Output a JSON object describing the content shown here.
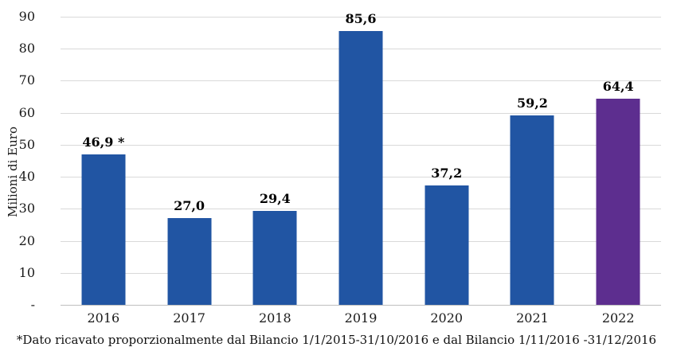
{
  "chart_data": {
    "type": "bar",
    "categories": [
      "2016",
      "2017",
      "2018",
      "2019",
      "2020",
      "2021",
      "2022"
    ],
    "values": [
      46.9,
      27.0,
      29.4,
      85.6,
      37.2,
      59.2,
      64.4
    ],
    "value_labels": [
      "46,9 *",
      "27,0",
      "29,4",
      "85,6",
      "37,2",
      "59,2",
      "64,4"
    ],
    "bar_colors": [
      "#2155A3",
      "#2155A3",
      "#2155A3",
      "#2155A3",
      "#2155A3",
      "#2155A3",
      "#5D2E8F"
    ],
    "title": "",
    "xlabel": "",
    "ylabel": "Milioni di Euro",
    "ylim": [
      0,
      90
    ],
    "y_tick_step": 10,
    "y_tick_labels": [
      "-",
      "10",
      "20",
      "30",
      "40",
      "50",
      "60",
      "70",
      "80",
      "90"
    ],
    "grid": true,
    "legend": false
  },
  "footnote": "*Dato ricavato proporzionalmente dal Bilancio 1/1/2015-31/10/2016 e dal Bilancio 1/11/2016 -31/12/2016",
  "colors": {
    "bar_blue": "#2155A3",
    "bar_purple": "#5D2E8F",
    "gridline": "#d9d9d9",
    "axis_line": "#bfbfbf",
    "text": "#111111"
  }
}
